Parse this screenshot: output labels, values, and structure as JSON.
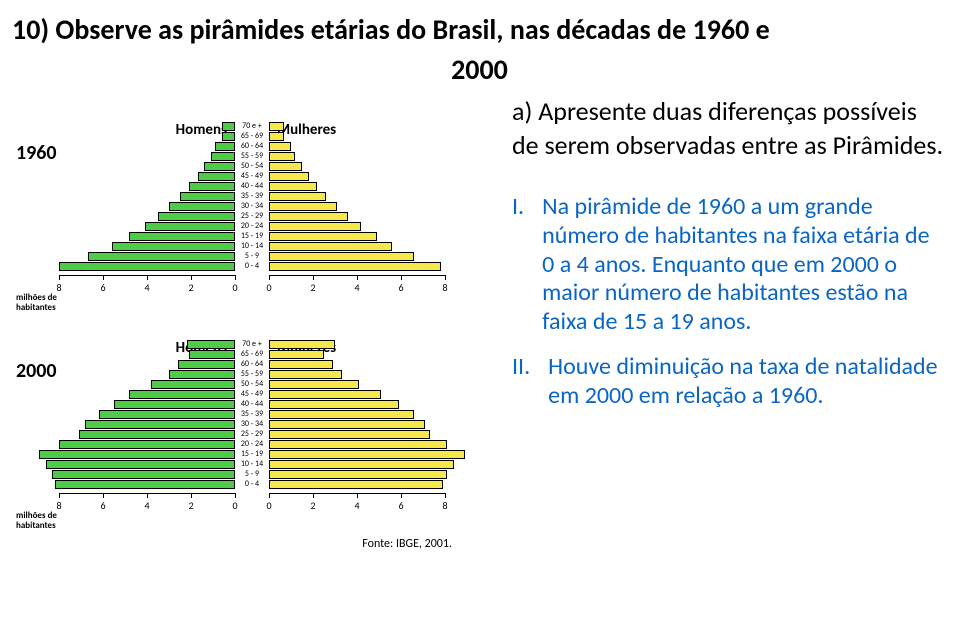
{
  "title_line1": "10) Observe as pirâmides etárias do Brasil, nas décadas de 1960 e",
  "title_line2": "2000",
  "prompt_a": "a)",
  "prompt_text": "Apresente duas diferenças possíveis de serem observadas entre as Pirâmides.",
  "answers": [
    {
      "num": "I.",
      "text": "Na pirâmide de 1960 a um grande número de habitantes na faixa etária de 0 a 4 anos. Enquanto que em 2000 o maior número de habitantes estão na faixa de 15 a 19 anos."
    },
    {
      "num": "II.",
      "text": "Houve diminuição na taxa de natalidade em 2000 em relação a 1960."
    }
  ],
  "answer_color": "#0a66c4",
  "pyramids": [
    {
      "year": "1960",
      "male_label": "Homens",
      "female_label": "Mulheres",
      "male_color": "#4ecc48",
      "female_color": "#f5e84a",
      "scale": 22,
      "age_labels": [
        "70 e +",
        "65 - 69",
        "60 - 64",
        "55 - 59",
        "50 - 54",
        "45 - 49",
        "40 - 44",
        "35 - 39",
        "30 - 34",
        "25 - 29",
        "20 - 24",
        "15 - 19",
        "10 - 14",
        "5 - 9",
        "0 - 4"
      ],
      "male": [
        0.6,
        0.6,
        0.9,
        1.1,
        1.4,
        1.7,
        2.1,
        2.5,
        3.0,
        3.5,
        4.1,
        4.8,
        5.6,
        6.7,
        8.0
      ],
      "female": [
        0.7,
        0.7,
        1.0,
        1.2,
        1.5,
        1.8,
        2.2,
        2.6,
        3.1,
        3.6,
        4.2,
        4.9,
        5.6,
        6.6,
        7.8
      ],
      "axis_max": 8,
      "axis_unit": "milhões de\nhabitantes"
    },
    {
      "year": "2000",
      "male_label": "Homens",
      "female_label": "Mulheres",
      "male_color": "#4ecc48",
      "female_color": "#f5e84a",
      "scale": 22,
      "age_labels": [
        "70 e +",
        "65 - 69",
        "60 - 64",
        "55 - 59",
        "50 - 54",
        "45 - 49",
        "40 - 44",
        "35 - 39",
        "30 - 34",
        "25 - 29",
        "20 - 24",
        "15 - 19",
        "10 - 14",
        "5 - 9",
        "0 - 4"
      ],
      "male": [
        2.2,
        2.1,
        2.6,
        3.0,
        3.8,
        4.8,
        5.5,
        6.2,
        6.8,
        7.1,
        8.0,
        8.9,
        8.6,
        8.3,
        8.2
      ],
      "female": [
        3.0,
        2.5,
        2.9,
        3.3,
        4.1,
        5.1,
        5.9,
        6.6,
        7.1,
        7.3,
        8.1,
        8.9,
        8.4,
        8.1,
        7.9
      ],
      "axis_max": 8,
      "axis_unit": "milhões de\nhabitantes"
    }
  ],
  "source": "Fonte: IBGE, 2001."
}
